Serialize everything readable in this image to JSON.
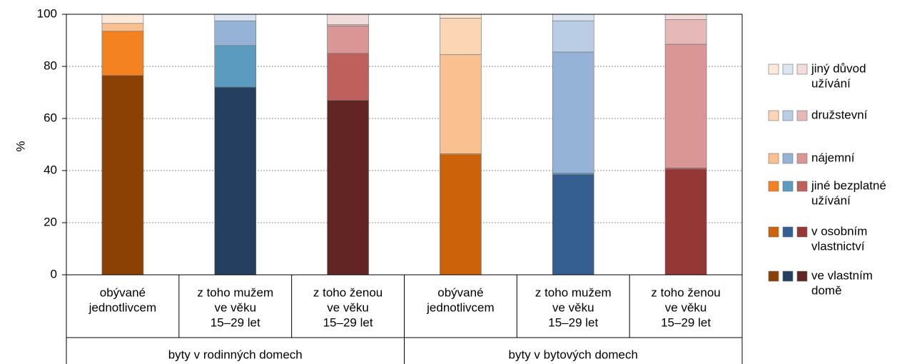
{
  "chart_data": {
    "type": "stacked-bar",
    "y_label": "%",
    "ylim": [
      0,
      100
    ],
    "yticks": [
      0,
      20,
      40,
      60,
      80,
      100
    ],
    "grid": true,
    "legend": "right",
    "categories": [
      [
        "obývané",
        "jednotlivcem"
      ],
      [
        "z toho mužem",
        "ve věku",
        "15–29 let"
      ],
      [
        "z toho ženou",
        "ve věku",
        "15–29 let"
      ],
      [
        "obývané",
        "jednotlivcem"
      ],
      [
        "z toho mužem",
        "ve věku",
        "15–29 let"
      ],
      [
        "z toho ženou",
        "ve věku",
        "15–29 let"
      ]
    ],
    "groups": [
      "byty v rodinných domech",
      "byty v bytových domech"
    ],
    "series": [
      {
        "name": [
          "ve vlastním",
          "domě"
        ],
        "colors": [
          "#8b4104",
          "#243f60",
          "#632523"
        ],
        "values": [
          76.5,
          72,
          67,
          0,
          0,
          0
        ]
      },
      {
        "name": [
          "v osobním",
          "vlastnictví"
        ],
        "colors": [
          "#cc6209",
          "#365f91",
          "#953735"
        ],
        "values": [
          0,
          0,
          0,
          46,
          38.5,
          40.5
        ]
      },
      {
        "name": [
          "jiné bezplatné",
          "užívání"
        ],
        "colors": [
          "#f58220",
          "#5b9bbf",
          "#c0605d"
        ],
        "values": [
          17,
          16,
          18,
          0.5,
          0.5,
          0.5
        ]
      },
      {
        "name": [
          "nájemní"
        ],
        "colors": [
          "#fac090",
          "#95b3d7",
          "#d99694"
        ],
        "values": [
          3,
          9.5,
          10.5,
          38,
          46.5,
          47.5
        ]
      },
      {
        "name": [
          "družstevní"
        ],
        "colors": [
          "#fcd5b5",
          "#b9cde5",
          "#e6b9b8"
        ],
        "values": [
          0,
          0,
          0.5,
          14,
          12,
          9.5
        ]
      },
      {
        "name": [
          "jiný důvod",
          "užívání"
        ],
        "colors": [
          "#fde9d9",
          "#dce6f2",
          "#f2dcdb"
        ],
        "values": [
          3.5,
          2.5,
          4,
          1.5,
          2.5,
          2
        ]
      }
    ]
  }
}
